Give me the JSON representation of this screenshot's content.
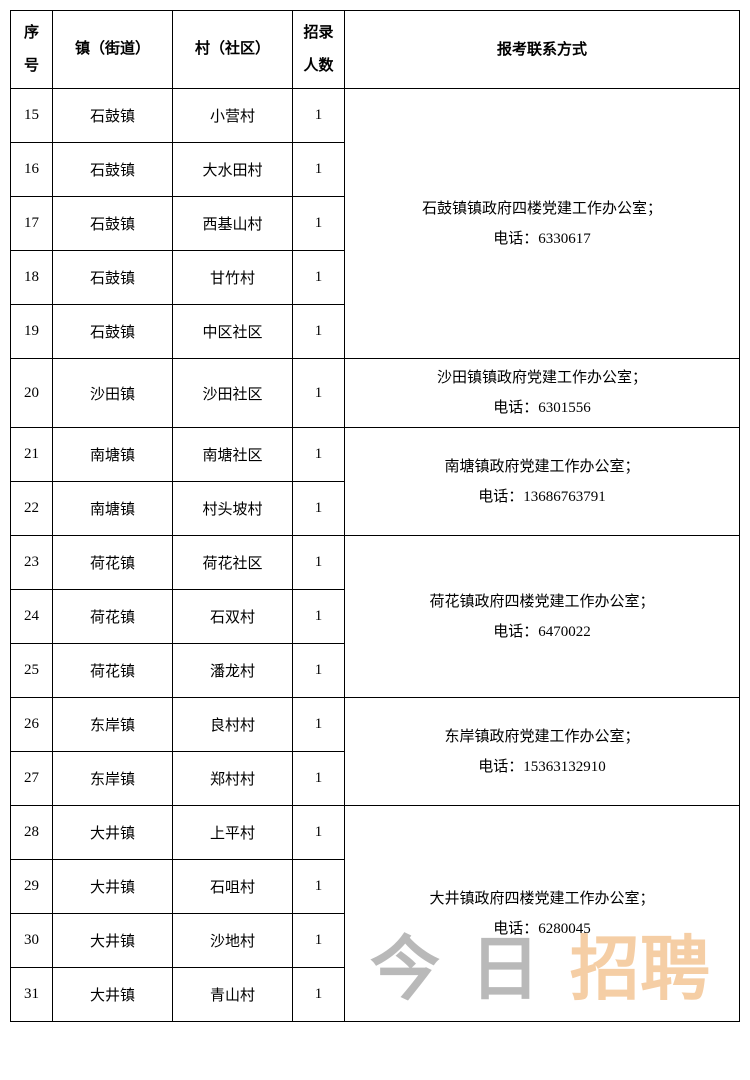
{
  "headers": {
    "index": "序号",
    "town": "镇（街道）",
    "village": "村（社区）",
    "count": "招录人数",
    "contact": "报考联系方式"
  },
  "groups": [
    {
      "contact_line1": "石鼓镇镇政府四楼党建工作办公室；",
      "contact_line2": "电话：6330617",
      "rows": [
        {
          "index": "15",
          "town": "石鼓镇",
          "village": "小营村",
          "count": "1"
        },
        {
          "index": "16",
          "town": "石鼓镇",
          "village": "大水田村",
          "count": "1"
        },
        {
          "index": "17",
          "town": "石鼓镇",
          "village": "西基山村",
          "count": "1"
        },
        {
          "index": "18",
          "town": "石鼓镇",
          "village": "甘竹村",
          "count": "1"
        },
        {
          "index": "19",
          "town": "石鼓镇",
          "village": "中区社区",
          "count": "1"
        }
      ]
    },
    {
      "contact_line1": "沙田镇镇政府党建工作办公室；",
      "contact_line2": "电话：6301556",
      "rows": [
        {
          "index": "20",
          "town": "沙田镇",
          "village": "沙田社区",
          "count": "1"
        }
      ]
    },
    {
      "contact_line1": "南塘镇政府党建工作办公室；",
      "contact_line2": "电话：13686763791",
      "rows": [
        {
          "index": "21",
          "town": "南塘镇",
          "village": "南塘社区",
          "count": "1"
        },
        {
          "index": "22",
          "town": "南塘镇",
          "village": "村头坡村",
          "count": "1"
        }
      ]
    },
    {
      "contact_line1": "荷花镇政府四楼党建工作办公室；",
      "contact_line2": "电话：6470022",
      "rows": [
        {
          "index": "23",
          "town": "荷花镇",
          "village": "荷花社区",
          "count": "1"
        },
        {
          "index": "24",
          "town": "荷花镇",
          "village": "石双村",
          "count": "1"
        },
        {
          "index": "25",
          "town": "荷花镇",
          "village": "潘龙村",
          "count": "1"
        }
      ]
    },
    {
      "contact_line1": "东岸镇政府党建工作办公室；",
      "contact_line2": "电话：15363132910",
      "rows": [
        {
          "index": "26",
          "town": "东岸镇",
          "village": "良村村",
          "count": "1"
        },
        {
          "index": "27",
          "town": "东岸镇",
          "village": "郑村村",
          "count": "1"
        }
      ]
    },
    {
      "contact_line1": "大井镇政府四楼党建工作办公室；",
      "contact_line2": "电话：6280045",
      "rows": [
        {
          "index": "28",
          "town": "大井镇",
          "village": "上平村",
          "count": "1"
        },
        {
          "index": "29",
          "town": "大井镇",
          "village": "石咀村",
          "count": "1"
        },
        {
          "index": "30",
          "town": "大井镇",
          "village": "沙地村",
          "count": "1"
        },
        {
          "index": "31",
          "town": "大井镇",
          "village": "青山村",
          "count": "1"
        }
      ]
    }
  ],
  "watermark": {
    "part1": "今日",
    "part2": "招聘"
  }
}
